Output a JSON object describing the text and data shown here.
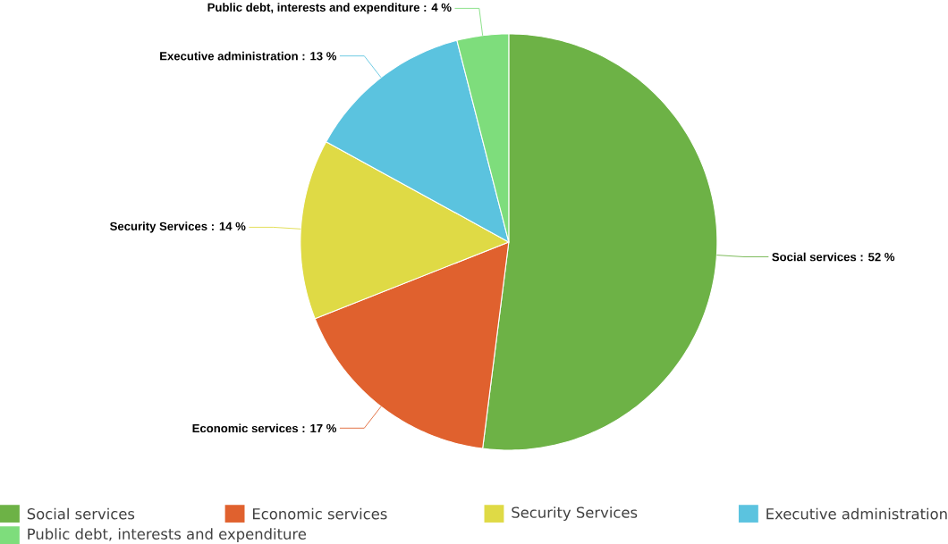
{
  "chart_data": {
    "type": "pie",
    "categories": [
      "Social services",
      "Economic services",
      "Security Services",
      "Executive administration",
      "Public debt, interests and expenditure"
    ],
    "values": [
      52,
      17,
      14,
      13,
      4
    ],
    "value_labels": [
      "Social services : 52 %",
      "Economic services : 17 %",
      "Security Services : 14 %",
      "Executive administration : 13 %",
      "Public debt, interests and expenditure : 4 %"
    ],
    "colors": [
      "#6db246",
      "#e0612e",
      "#dfda45",
      "#5bc3df",
      "#7edd7c"
    ],
    "legend": "bottom"
  }
}
